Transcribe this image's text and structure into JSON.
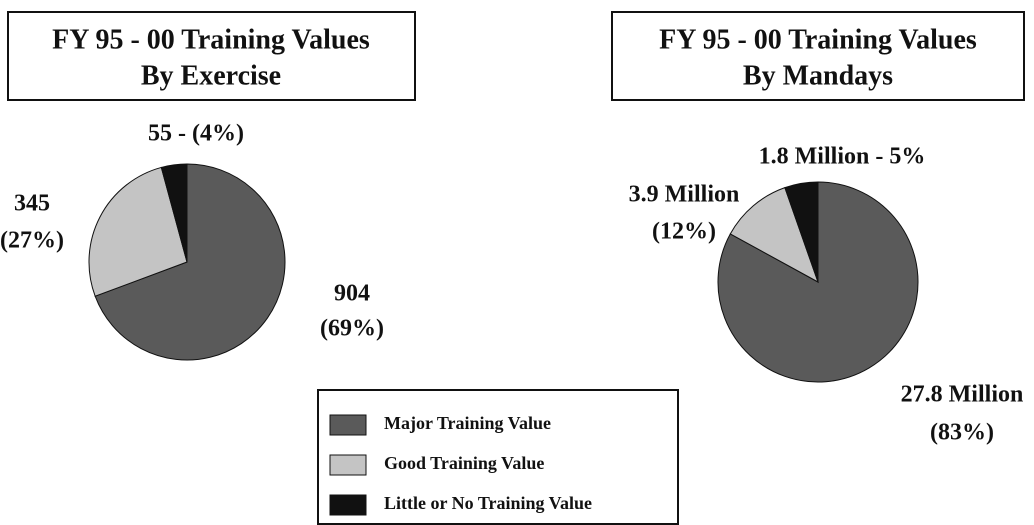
{
  "chart_data": [
    {
      "type": "pie",
      "title": "FY 95 - 00 Training Values",
      "subtitle": "By Exercise",
      "categories": [
        "Major Training Value",
        "Good Training Value",
        "Little or No Training Value"
      ],
      "values": [
        904,
        345,
        55
      ],
      "value_labels": [
        [
          "904",
          "(69%)"
        ],
        [
          "345",
          "(27%)"
        ],
        [
          "55 - (4%)"
        ]
      ],
      "colors": [
        "#5a5a5a",
        "#c4c4c4",
        "#111111"
      ]
    },
    {
      "type": "pie",
      "title": "FY 95 - 00 Training Values",
      "subtitle": "By Mandays",
      "categories": [
        "Major Training Value",
        "Good Training Value",
        "Little or No Training Value"
      ],
      "values": [
        27.8,
        3.9,
        1.8
      ],
      "value_labels": [
        [
          "27.8 Million",
          "(83%)"
        ],
        [
          "3.9 Million",
          "(12%)"
        ],
        [
          "1.8 Million - 5%"
        ]
      ],
      "colors": [
        "#5a5a5a",
        "#c4c4c4",
        "#111111"
      ]
    }
  ]
}
